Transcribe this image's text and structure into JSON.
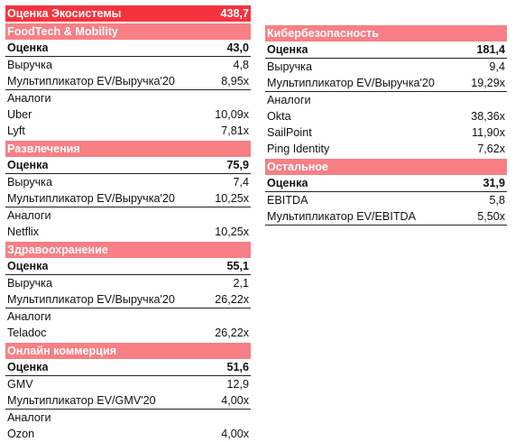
{
  "colors": {
    "total_header": "#f5333f",
    "section_header": "#f77f85"
  },
  "ecosystem": {
    "label": "Оценка Экосистемы",
    "value": "438,7"
  },
  "left_sections": [
    {
      "title": "FoodTech & Mobility",
      "rating": {
        "label": "Оценка",
        "value": "43,0"
      },
      "metric1": {
        "label": "Выручка",
        "value": "4,8"
      },
      "metric2": {
        "label": "Мультипликатор EV/Выручка'20",
        "value": "8,95x"
      },
      "peers_label": "Аналоги",
      "peers": [
        {
          "label": "Uber",
          "value": "10,09x"
        },
        {
          "label": "Lyft",
          "value": "7,81x"
        }
      ]
    },
    {
      "title": "Развлечения",
      "rating": {
        "label": "Оценка",
        "value": "75,9"
      },
      "metric1": {
        "label": "Выручка",
        "value": "7,4"
      },
      "metric2": {
        "label": "Мультипликатор EV/Выручка'20",
        "value": "10,25x"
      },
      "peers_label": "Аналоги",
      "peers": [
        {
          "label": "Netflix",
          "value": "10,25x"
        }
      ]
    },
    {
      "title": "Здравоохранение",
      "rating": {
        "label": "Оценка",
        "value": "55,1"
      },
      "metric1": {
        "label": "Выручка",
        "value": "2,1"
      },
      "metric2": {
        "label": "Мультипликатор EV/Выручка'20",
        "value": "26,22x"
      },
      "peers_label": "Аналоги",
      "peers": [
        {
          "label": "Teladoc",
          "value": "26,22x"
        }
      ]
    },
    {
      "title": "Онлайн коммерция",
      "rating": {
        "label": "Оценка",
        "value": "51,6"
      },
      "metric1": {
        "label": "GMV",
        "value": "12,9"
      },
      "metric2": {
        "label": "Мультипликатор EV/GMV'20",
        "value": "4,00x"
      },
      "peers_label": "Аналоги",
      "peers": [
        {
          "label": "Ozon",
          "value": "4,00x"
        }
      ]
    }
  ],
  "right_sections": [
    {
      "title": "Кибербезопасность",
      "rating": {
        "label": "Оценка",
        "value": "181,4"
      },
      "metric1": {
        "label": "Выручка",
        "value": "9,4"
      },
      "metric2": {
        "label": "Мультипликатор EV/Выручка'20",
        "value": "19,29x"
      },
      "peers_label": "Аналоги",
      "peers": [
        {
          "label": "Okta",
          "value": "38,36x"
        },
        {
          "label": "SailPoint",
          "value": "11,90x"
        },
        {
          "label": "Ping Identity",
          "value": "7,62x"
        }
      ]
    },
    {
      "title": "Остальное",
      "rating": {
        "label": "Оценка",
        "value": "31,9"
      },
      "metric1": {
        "label": "EBITDA",
        "value": "5,8"
      },
      "metric2": {
        "label": "Мультипликатор EV/EBITDA",
        "value": "5,50x"
      },
      "peers_label": null,
      "peers": []
    }
  ]
}
